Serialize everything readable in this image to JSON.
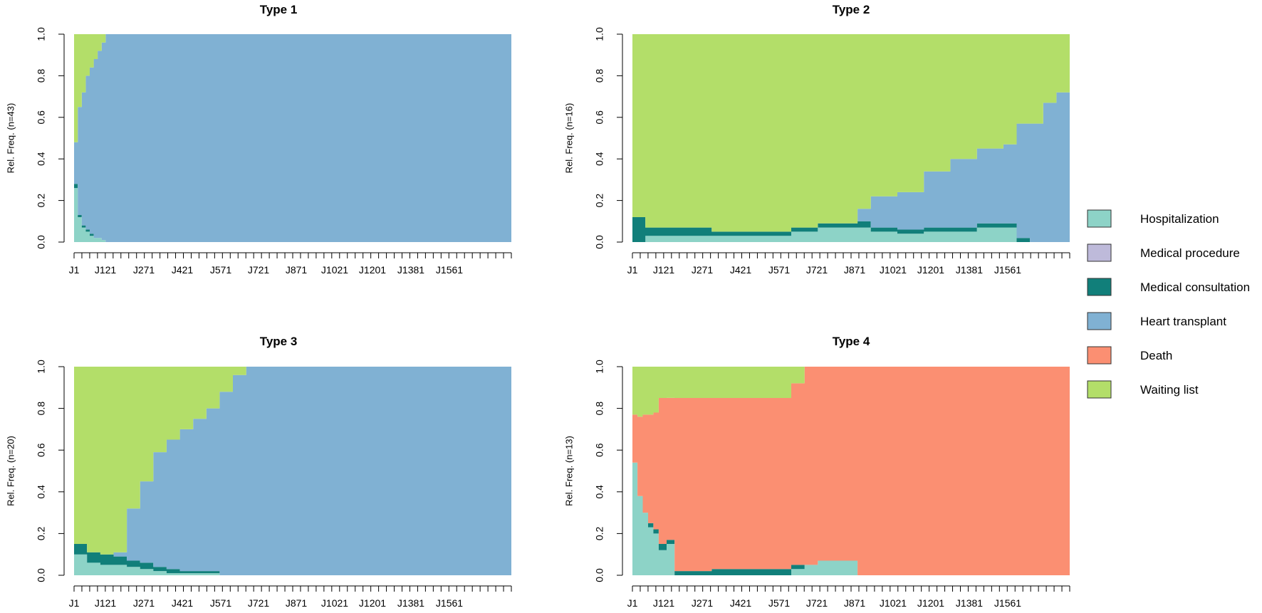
{
  "chart_data": [
    {
      "type": "area",
      "title": "Type 1",
      "ylabel": "Rel. Freq. (n=43)",
      "xlabel": "",
      "ylim": [
        0,
        1
      ],
      "yticks": [
        "0.0",
        "0.2",
        "0.4",
        "0.6",
        "0.8",
        "1.0"
      ],
      "x_tick_labels": [
        "J1",
        "J121",
        "J271",
        "J421",
        "J571",
        "J721",
        "J871",
        "J1021",
        "J1201",
        "J1381",
        "J1561"
      ],
      "x": [
        1,
        15,
        30,
        45,
        60,
        75,
        90,
        105,
        120,
        135,
        150,
        300,
        600,
        900,
        1200,
        1500,
        1650
      ],
      "series": [
        {
          "name": "Hospitalization",
          "values": [
            0.26,
            0.12,
            0.07,
            0.05,
            0.03,
            0.02,
            0.02,
            0.01,
            0,
            0,
            0,
            0,
            0,
            0,
            0,
            0,
            0
          ]
        },
        {
          "name": "Medical procedure",
          "values": [
            0,
            0,
            0,
            0,
            0,
            0,
            0,
            0,
            0,
            0,
            0,
            0,
            0,
            0,
            0,
            0,
            0
          ]
        },
        {
          "name": "Medical consultation",
          "values": [
            0.02,
            0.01,
            0.01,
            0.01,
            0.01,
            0,
            0,
            0,
            0,
            0,
            0,
            0,
            0,
            0,
            0,
            0,
            0
          ]
        },
        {
          "name": "Heart transplant",
          "values": [
            0.2,
            0.52,
            0.64,
            0.74,
            0.8,
            0.86,
            0.9,
            0.95,
            1.0,
            1.0,
            1.0,
            1.0,
            1.0,
            1.0,
            1.0,
            1.0,
            1.0
          ]
        },
        {
          "name": "Death",
          "values": [
            0,
            0,
            0,
            0,
            0,
            0,
            0,
            0,
            0,
            0,
            0,
            0,
            0,
            0,
            0,
            0,
            0
          ]
        },
        {
          "name": "Waiting list",
          "values": [
            0.52,
            0.35,
            0.28,
            0.2,
            0.16,
            0.12,
            0.08,
            0.04,
            0,
            0,
            0,
            0,
            0,
            0,
            0,
            0,
            0
          ]
        }
      ]
    },
    {
      "type": "area",
      "title": "Type 2",
      "ylabel": "Rel. Freq. (n=16)",
      "xlabel": "",
      "ylim": [
        0,
        1
      ],
      "yticks": [
        "0.0",
        "0.2",
        "0.4",
        "0.6",
        "0.8",
        "1.0"
      ],
      "x_tick_labels": [
        "J1",
        "J121",
        "J271",
        "J421",
        "J571",
        "J721",
        "J871",
        "J1021",
        "J1201",
        "J1381",
        "J1561"
      ],
      "x": [
        1,
        50,
        300,
        600,
        700,
        850,
        900,
        1000,
        1100,
        1200,
        1300,
        1400,
        1450,
        1500,
        1550,
        1600,
        1650
      ],
      "series": [
        {
          "name": "Hospitalization",
          "values": [
            0,
            0.03,
            0.03,
            0.05,
            0.07,
            0.07,
            0.05,
            0.04,
            0.05,
            0.05,
            0.07,
            0.07,
            0,
            0,
            0,
            0,
            0
          ]
        },
        {
          "name": "Medical procedure",
          "values": [
            0,
            0,
            0,
            0,
            0,
            0,
            0,
            0,
            0,
            0,
            0,
            0,
            0,
            0,
            0,
            0,
            0
          ]
        },
        {
          "name": "Medical consultation",
          "values": [
            0.12,
            0.04,
            0.02,
            0.02,
            0.02,
            0.03,
            0.02,
            0.02,
            0.02,
            0.02,
            0.02,
            0.02,
            0.02,
            0,
            0,
            0,
            0
          ]
        },
        {
          "name": "Heart transplant",
          "values": [
            0,
            0,
            0,
            0,
            0,
            0.06,
            0.15,
            0.18,
            0.27,
            0.33,
            0.36,
            0.38,
            0.55,
            0.57,
            0.67,
            0.72,
            0.8
          ]
        },
        {
          "name": "Death",
          "values": [
            0,
            0,
            0,
            0,
            0,
            0,
            0,
            0,
            0,
            0,
            0,
            0,
            0,
            0,
            0,
            0,
            0
          ]
        },
        {
          "name": "Waiting list",
          "values": [
            0.88,
            0.93,
            0.95,
            0.93,
            0.91,
            0.84,
            0.78,
            0.76,
            0.66,
            0.6,
            0.55,
            0.53,
            0.43,
            0.43,
            0.33,
            0.28,
            0.2
          ]
        }
      ]
    },
    {
      "type": "area",
      "title": "Type 3",
      "ylabel": "Rel. Freq. (n=20)",
      "xlabel": "",
      "ylim": [
        0,
        1
      ],
      "yticks": [
        "0.0",
        "0.2",
        "0.4",
        "0.6",
        "0.8",
        "1.0"
      ],
      "x_tick_labels": [
        "J1",
        "J121",
        "J271",
        "J421",
        "J571",
        "J721",
        "J871",
        "J1021",
        "J1201",
        "J1381",
        "J1561"
      ],
      "x": [
        1,
        50,
        100,
        150,
        200,
        250,
        300,
        350,
        400,
        450,
        500,
        550,
        600,
        650,
        900,
        1200,
        1650
      ],
      "series": [
        {
          "name": "Hospitalization",
          "values": [
            0.1,
            0.06,
            0.05,
            0.05,
            0.04,
            0.03,
            0.02,
            0.01,
            0.01,
            0.01,
            0.01,
            0,
            0,
            0,
            0,
            0,
            0
          ]
        },
        {
          "name": "Medical procedure",
          "values": [
            0,
            0,
            0,
            0,
            0,
            0,
            0,
            0,
            0,
            0,
            0,
            0,
            0,
            0,
            0,
            0,
            0
          ]
        },
        {
          "name": "Medical consultation",
          "values": [
            0.05,
            0.05,
            0.05,
            0.04,
            0.03,
            0.03,
            0.02,
            0.02,
            0.01,
            0.01,
            0.01,
            0,
            0,
            0,
            0,
            0,
            0
          ]
        },
        {
          "name": "Heart transplant",
          "values": [
            0,
            0,
            0,
            0.02,
            0.25,
            0.39,
            0.55,
            0.62,
            0.68,
            0.73,
            0.78,
            0.88,
            0.96,
            1.0,
            1.0,
            1.0,
            1.0
          ]
        },
        {
          "name": "Death",
          "values": [
            0,
            0,
            0,
            0,
            0,
            0,
            0,
            0,
            0,
            0,
            0,
            0,
            0,
            0,
            0,
            0,
            0
          ]
        },
        {
          "name": "Waiting list",
          "values": [
            0.85,
            0.89,
            0.9,
            0.89,
            0.68,
            0.55,
            0.41,
            0.35,
            0.3,
            0.25,
            0.2,
            0.12,
            0.04,
            0,
            0,
            0,
            0
          ]
        }
      ]
    },
    {
      "type": "area",
      "title": "Type 4",
      "ylabel": "Rel. Freq. (n=13)",
      "xlabel": "",
      "ylim": [
        0,
        1
      ],
      "yticks": [
        "0.0",
        "0.2",
        "0.4",
        "0.6",
        "0.8",
        "1.0"
      ],
      "x_tick_labels": [
        "J1",
        "J121",
        "J271",
        "J421",
        "J571",
        "J721",
        "J871",
        "J1021",
        "J1201",
        "J1381",
        "J1561"
      ],
      "x": [
        1,
        20,
        40,
        60,
        80,
        100,
        130,
        160,
        300,
        500,
        600,
        650,
        700,
        750,
        800,
        850,
        1650
      ],
      "series": [
        {
          "name": "Hospitalization",
          "values": [
            0.54,
            0.38,
            0.3,
            0.23,
            0.2,
            0.12,
            0.15,
            0,
            0,
            0,
            0.03,
            0.05,
            0.07,
            0.07,
            0.07,
            0,
            0
          ]
        },
        {
          "name": "Medical procedure",
          "values": [
            0,
            0,
            0,
            0,
            0,
            0,
            0,
            0,
            0,
            0,
            0,
            0,
            0,
            0,
            0,
            0,
            0
          ]
        },
        {
          "name": "Medical consultation",
          "values": [
            0,
            0,
            0,
            0.02,
            0.02,
            0.03,
            0.02,
            0.02,
            0.03,
            0.03,
            0.02,
            0,
            0,
            0,
            0,
            0,
            0
          ]
        },
        {
          "name": "Heart transplant",
          "values": [
            0,
            0,
            0,
            0,
            0,
            0,
            0,
            0,
            0,
            0,
            0,
            0,
            0,
            0,
            0,
            0,
            0
          ]
        },
        {
          "name": "Death",
          "values": [
            0.23,
            0.38,
            0.47,
            0.52,
            0.56,
            0.7,
            0.68,
            0.83,
            0.82,
            0.82,
            0.87,
            0.95,
            0.93,
            0.93,
            0.93,
            1.0,
            1.0
          ]
        },
        {
          "name": "Waiting list",
          "values": [
            0.23,
            0.24,
            0.23,
            0.23,
            0.22,
            0.15,
            0.15,
            0.15,
            0.15,
            0.15,
            0.08,
            0,
            0,
            0,
            0,
            0,
            0
          ]
        }
      ]
    }
  ],
  "legend": {
    "items": [
      {
        "label": "Hospitalization",
        "color": "#8DD3C7"
      },
      {
        "label": "Medical procedure",
        "color": "#BEBADA"
      },
      {
        "label": "Medical consultation",
        "color": "#117F7A"
      },
      {
        "label": "Heart transplant",
        "color": "#80B1D3"
      },
      {
        "label": "Death",
        "color": "#FB8F72"
      },
      {
        "label": "Waiting list",
        "color": "#B3DE69"
      }
    ]
  },
  "x_domain": [
    1,
    1650
  ]
}
